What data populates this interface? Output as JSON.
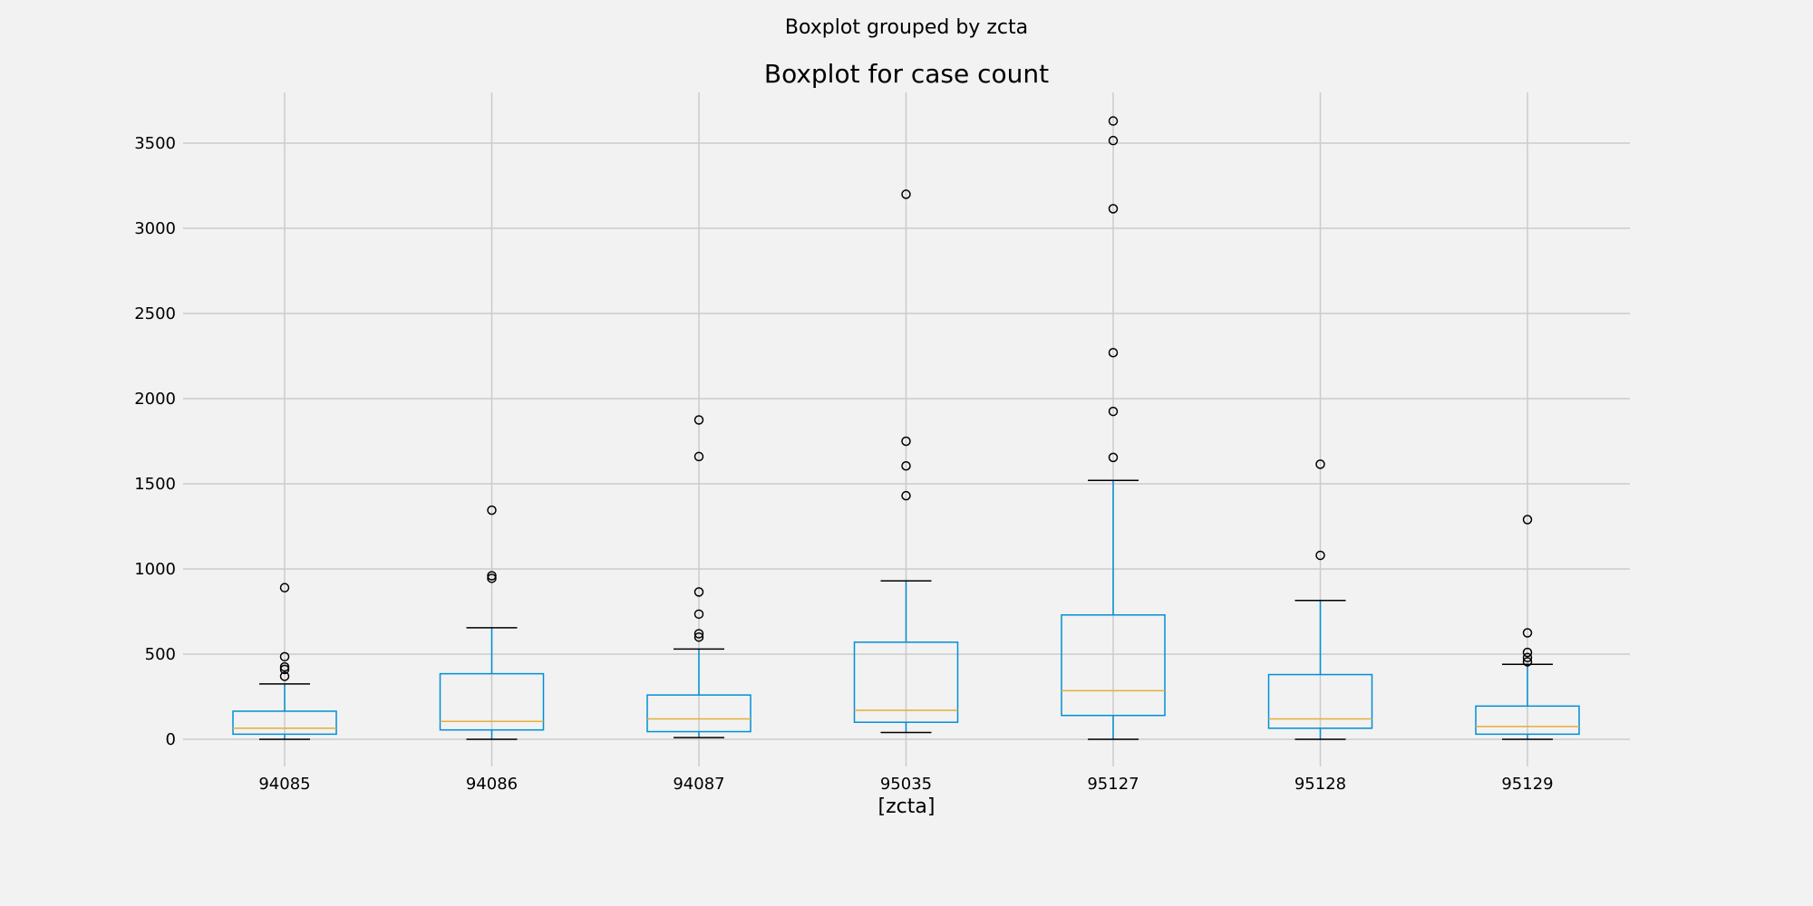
{
  "chart_data": {
    "type": "box",
    "suptitle": "Boxplot grouped by zcta",
    "title": "Boxplot for case count",
    "xlabel": "[zcta]",
    "ylabel": "",
    "ylim": [
      -130,
      3800
    ],
    "yticks": [
      0,
      500,
      1000,
      1500,
      2000,
      2500,
      3000,
      3500
    ],
    "grid": true,
    "colors": {
      "background": "#f2f2f2",
      "grid": "#cbcbcb",
      "box": "#008fd5",
      "median": "#e5ae38",
      "cap": "#000000",
      "flier": "#000000"
    },
    "categories": [
      "94085",
      "94086",
      "94087",
      "95035",
      "95127",
      "95128",
      "95129"
    ],
    "boxes": [
      {
        "label": "94085",
        "whisker_low": 0,
        "q1": 30,
        "median": 65,
        "q3": 165,
        "whisker_high": 325,
        "fliers": [
          370,
          410,
          425,
          485,
          890
        ]
      },
      {
        "label": "94086",
        "whisker_low": 0,
        "q1": 55,
        "median": 105,
        "q3": 385,
        "whisker_high": 655,
        "fliers": [
          945,
          960,
          1345
        ]
      },
      {
        "label": "94087",
        "whisker_low": 10,
        "q1": 45,
        "median": 120,
        "q3": 260,
        "whisker_high": 530,
        "fliers": [
          600,
          620,
          735,
          865,
          1660,
          1875
        ]
      },
      {
        "label": "95035",
        "whisker_low": 40,
        "q1": 100,
        "median": 170,
        "q3": 570,
        "whisker_high": 930,
        "fliers": [
          1430,
          1605,
          1750,
          3200
        ]
      },
      {
        "label": "95127",
        "whisker_low": 0,
        "q1": 140,
        "median": 285,
        "q3": 730,
        "whisker_high": 1520,
        "fliers": [
          1655,
          1925,
          2270,
          3115,
          3515,
          3630
        ]
      },
      {
        "label": "95128",
        "whisker_low": 0,
        "q1": 65,
        "median": 120,
        "q3": 380,
        "whisker_high": 815,
        "fliers": [
          1080,
          1615
        ]
      },
      {
        "label": "95129",
        "whisker_low": 0,
        "q1": 30,
        "median": 75,
        "q3": 195,
        "whisker_high": 440,
        "fliers": [
          455,
          480,
          510,
          625,
          1290
        ]
      }
    ]
  }
}
